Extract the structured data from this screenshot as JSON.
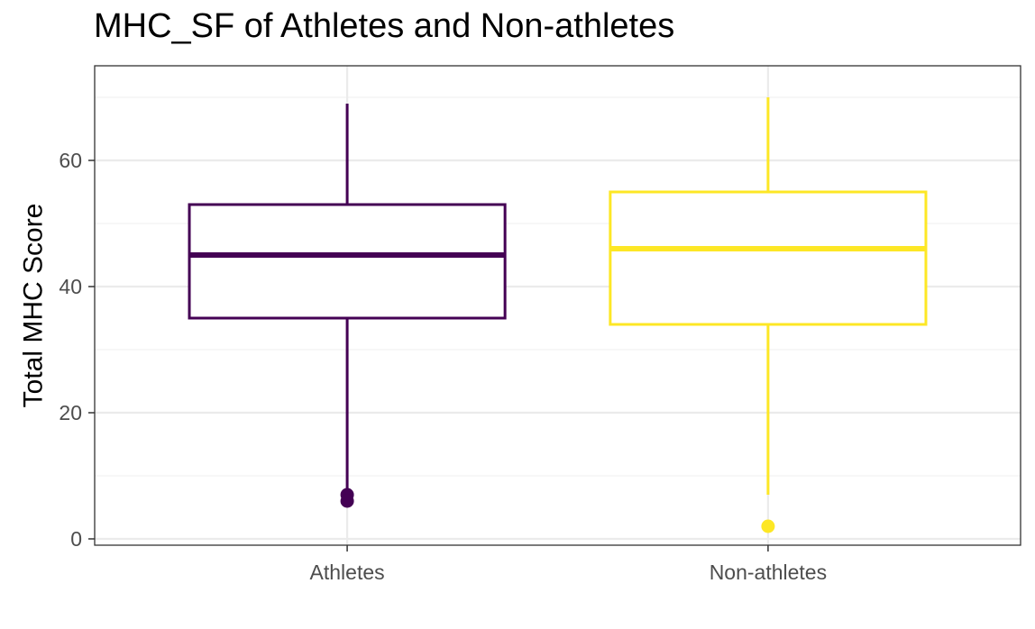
{
  "chart_data": {
    "type": "boxplot",
    "title": "MHC_SF of Athletes and Non-athletes",
    "xlabel": "",
    "ylabel": "Total MHC Score",
    "ylim": [
      -1,
      75
    ],
    "y_ticks": [
      0,
      20,
      40,
      60
    ],
    "grid": true,
    "legend": "none",
    "categories": [
      "Athletes",
      "Non-athletes"
    ],
    "series": [
      {
        "category": "Athletes",
        "color": "#440154",
        "whisker_low": 7,
        "q1": 35,
        "median": 45,
        "q3": 53,
        "whisker_high": 69,
        "outliers": [
          7,
          6
        ]
      },
      {
        "category": "Non-athletes",
        "color": "#FDE725",
        "whisker_low": 7,
        "q1": 34,
        "median": 46,
        "q3": 55,
        "whisker_high": 70,
        "outliers": [
          2
        ]
      }
    ]
  }
}
